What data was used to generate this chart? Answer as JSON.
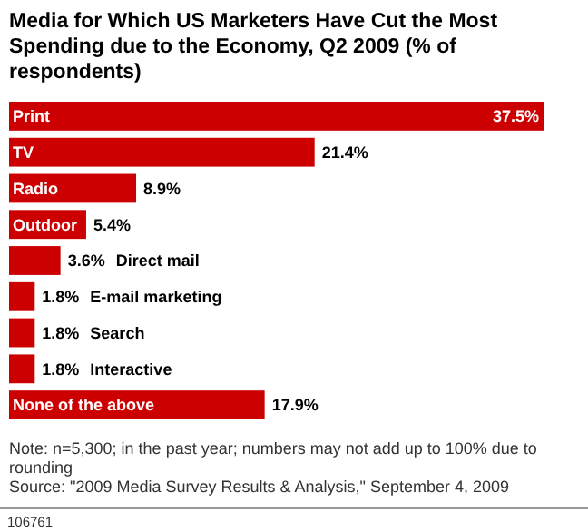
{
  "chart_data": {
    "type": "bar",
    "orientation": "horizontal",
    "title": "Media for Which US Marketers Have Cut the Most Spending due to the Economy, Q2 2009 (% of respondents)",
    "categories": [
      "Print",
      "TV",
      "Radio",
      "Outdoor",
      "Direct mail",
      "E-mail marketing",
      "Search",
      "Interactive",
      "None of the above"
    ],
    "values": [
      37.5,
      21.4,
      8.9,
      5.4,
      3.6,
      1.8,
      1.8,
      1.8,
      17.9
    ],
    "value_labels": [
      "37.5%",
      "21.4%",
      "8.9%",
      "5.4%",
      "3.6%",
      "1.8%",
      "1.8%",
      "1.8%",
      "17.9%"
    ],
    "color": "#cc0000",
    "annotations": [
      "Note: n=5,300; in the past year; numbers may not add up to 100% due to rounding",
      "Source: \"2009 Media Survey Results & Analysis,\" September 4, 2009",
      "106761"
    ]
  }
}
